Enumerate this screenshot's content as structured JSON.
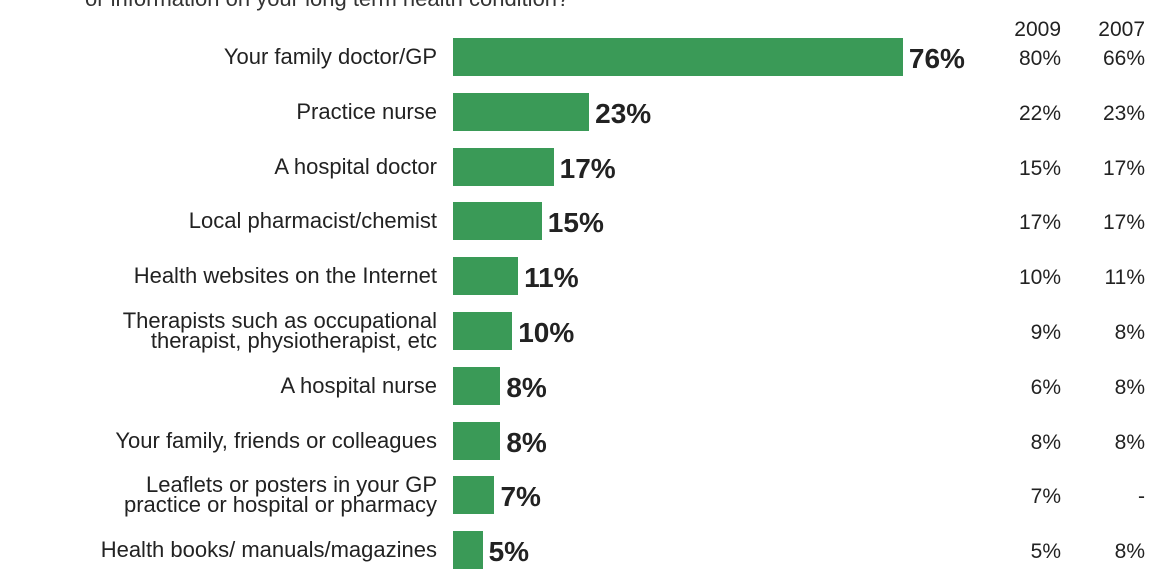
{
  "chart_data": {
    "type": "bar",
    "orientation": "horizontal",
    "title": "or information on your long term health condition?",
    "color": "#3a9a57",
    "categories": [
      "Your family doctor/GP",
      "Practice nurse",
      "A hospital doctor",
      "Local pharmacist/chemist",
      "Health websites on the Internet",
      "Therapists such as occupational\ntherapist, physiotherapist, etc",
      "A hospital nurse",
      "Your family, friends or colleagues",
      "Leaflets or posters in your GP\npractice or hospital or pharmacy",
      "Health books/ manuals/magazines"
    ],
    "values": [
      76,
      23,
      17,
      15,
      11,
      10,
      8,
      8,
      7,
      5
    ],
    "value_labels": [
      "76%",
      "23%",
      "17%",
      "15%",
      "11%",
      "10%",
      "8%",
      "8%",
      "7%",
      "5%"
    ],
    "comparison": {
      "headers": [
        "2009",
        "2007"
      ],
      "rows": [
        [
          "80%",
          "66%"
        ],
        [
          "22%",
          "23%"
        ],
        [
          "15%",
          "17%"
        ],
        [
          "17%",
          "17%"
        ],
        [
          "10%",
          "11%"
        ],
        [
          "9%",
          "8%"
        ],
        [
          "6%",
          "8%"
        ],
        [
          "8%",
          "8%"
        ],
        [
          "7%",
          "-"
        ],
        [
          "5%",
          "8%"
        ]
      ]
    }
  }
}
